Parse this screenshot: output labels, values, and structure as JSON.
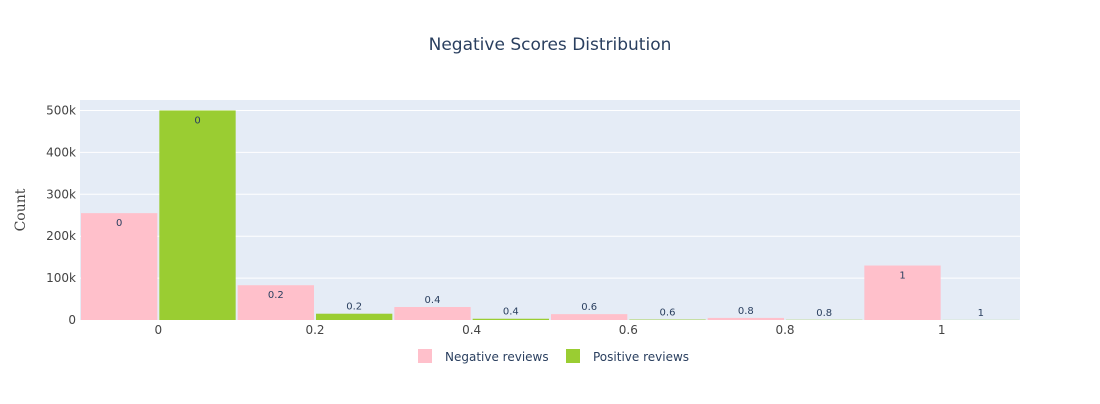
{
  "chart_data": {
    "type": "bar",
    "title": "Negative Scores Distribution",
    "xlabel": "",
    "ylabel": "Count",
    "categories": [
      "0",
      "0.2",
      "0.4",
      "0.6",
      "0.8",
      "1"
    ],
    "x": [
      0,
      0.2,
      0.4,
      0.6,
      0.8,
      1
    ],
    "xlim": [
      -0.1,
      1.1
    ],
    "ylim": [
      0,
      525000
    ],
    "yticks": [
      0,
      100000,
      200000,
      300000,
      400000,
      500000
    ],
    "ytick_labels": [
      "0",
      "100k",
      "200k",
      "300k",
      "400k",
      "500k"
    ],
    "grid": true,
    "legend_position": "bottom-center",
    "series": [
      {
        "name": "Negative reviews",
        "color": "#FFC0CB",
        "values": [
          255000,
          83000,
          31000,
          14000,
          5000,
          130000
        ],
        "labels": [
          "0",
          "0.2",
          "0.4",
          "0.6",
          "0.8",
          "1"
        ]
      },
      {
        "name": "Positive reviews",
        "color": "#9ACD32",
        "values": [
          500000,
          15000,
          3000,
          1000,
          500,
          200
        ],
        "labels": [
          "0",
          "0.2",
          "0.4",
          "0.6",
          "0.8",
          "1"
        ]
      }
    ]
  }
}
